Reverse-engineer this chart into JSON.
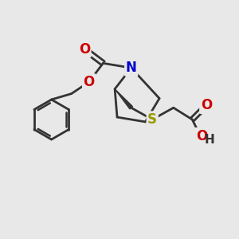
{
  "background_color": "#e8e8e8",
  "atom_colors": {
    "C": "#333333",
    "N": "#0000cc",
    "O": "#cc0000",
    "S": "#999900",
    "H": "#333333"
  },
  "bond_color": "#333333",
  "bond_width": 2.0,
  "figsize": [
    3.0,
    3.0
  ],
  "dpi": 100
}
